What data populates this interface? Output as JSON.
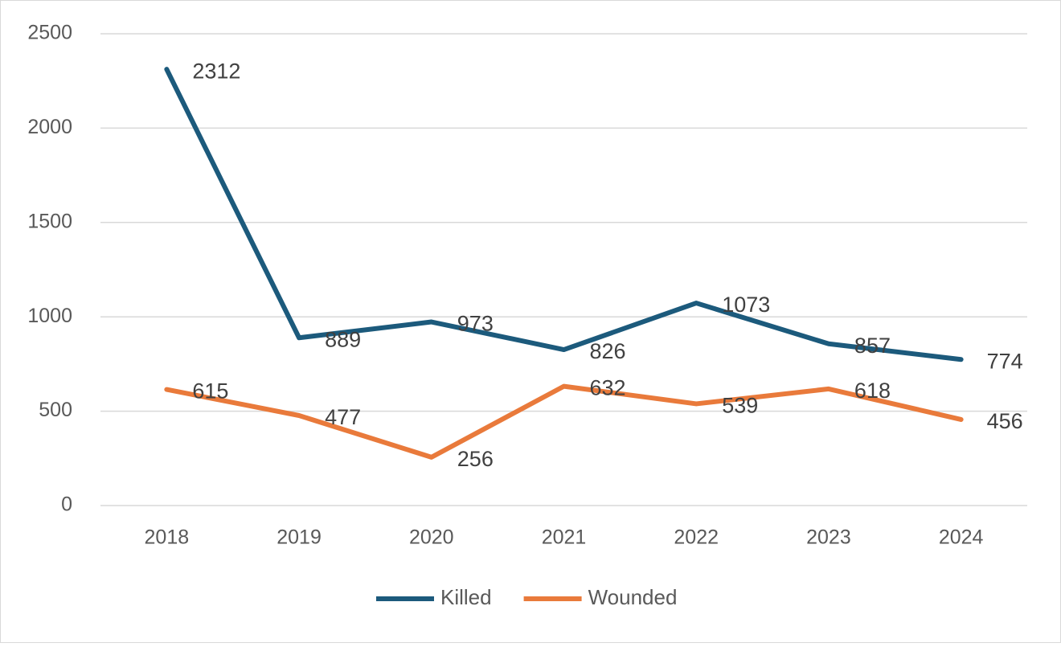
{
  "chart_data": {
    "type": "line",
    "categories": [
      "2018",
      "2019",
      "2020",
      "2021",
      "2022",
      "2023",
      "2024"
    ],
    "series": [
      {
        "name": "Killed",
        "color": "#1c5a7c",
        "values": [
          2312,
          889,
          973,
          826,
          1073,
          857,
          774
        ]
      },
      {
        "name": "Wounded",
        "color": "#e97a3b",
        "values": [
          615,
          477,
          256,
          632,
          539,
          618,
          456
        ]
      }
    ],
    "ylim": [
      0,
      2500
    ],
    "yticks": [
      0,
      500,
      1000,
      1500,
      2000,
      2500
    ],
    "grid": true,
    "legend": "bottom"
  }
}
